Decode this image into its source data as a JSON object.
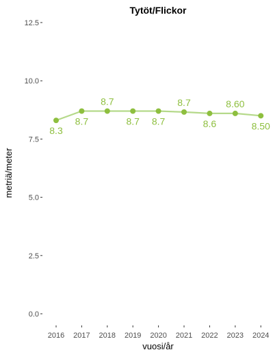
{
  "colors": {
    "series": "#8ebf3f",
    "line": "#b5d98a",
    "text": "#000000",
    "tick_text": "#4d4d4d"
  },
  "chart_data": {
    "type": "line",
    "title": "Tytöt/Flickor",
    "xlabel": "vuosi/år",
    "ylabel": "metriä/meter",
    "x": [
      "2016",
      "2017",
      "2018",
      "2019",
      "2020",
      "2021",
      "2022",
      "2023",
      "2024"
    ],
    "series": [
      {
        "values": [
          8.3,
          8.7,
          8.7,
          8.7,
          8.7,
          8.66,
          8.6,
          8.6,
          8.5
        ],
        "labels": [
          "8.3",
          "8.7",
          "8.7",
          "8.7",
          "8.7",
          "8.7",
          "8.6",
          "8.60",
          "8.50"
        ]
      }
    ],
    "ylim": [
      0,
      12.5
    ],
    "yticks": [
      0,
      2.5,
      5,
      7.5,
      10,
      12.5
    ],
    "ytick_labels": [
      "0.0",
      "2.5",
      "5.0",
      "7.5",
      "10.0",
      "12.5"
    ],
    "grid": false,
    "legend": "none"
  }
}
